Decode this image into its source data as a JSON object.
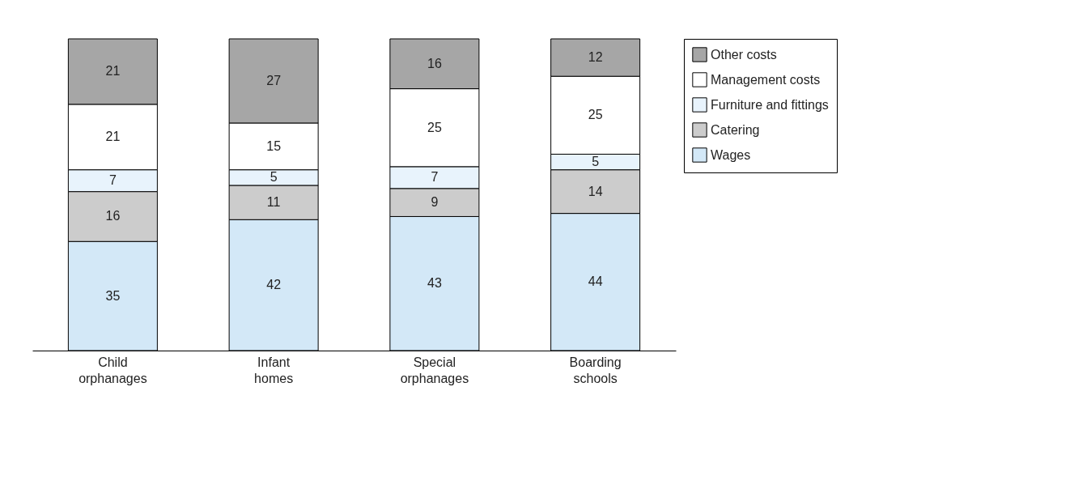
{
  "chart_data": {
    "type": "bar",
    "stacked": true,
    "data_labels": true,
    "legend": "right",
    "tick_labels": "x",
    "ylim": [
      0,
      100
    ],
    "categories": [
      "Child orphanages",
      "Infant homes",
      "Special orphanages",
      "Boarding schools"
    ],
    "series": [
      {
        "name": "Wages",
        "color": "#d3e8f7",
        "values": [
          35,
          42,
          43,
          44
        ]
      },
      {
        "name": "Catering",
        "color": "#cccccc",
        "values": [
          16,
          11,
          9,
          14
        ]
      },
      {
        "name": "Furniture and fittings",
        "color": "#e8f3fc",
        "values": [
          7,
          5,
          7,
          5
        ]
      },
      {
        "name": "Management costs",
        "color": "#ffffff",
        "values": [
          21,
          15,
          25,
          25
        ]
      },
      {
        "name": "Other costs",
        "color": "#a6a6a6",
        "values": [
          21,
          27,
          16,
          12
        ]
      }
    ]
  }
}
